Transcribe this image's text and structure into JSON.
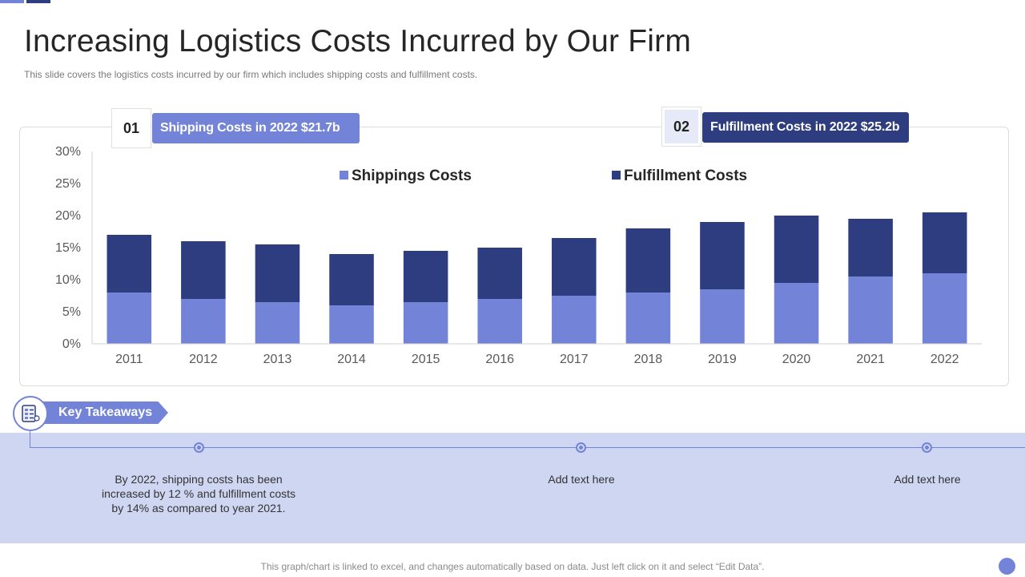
{
  "slide": {
    "title": "Increasing Logistics Costs Incurred by Our Firm",
    "subtitle": "This slide covers the logistics costs incurred by our firm which includes shipping costs and fulfillment costs.",
    "footer": "This graph/chart is linked to excel,  and changes automatically based on data. Just left click on it and select “Edit Data”."
  },
  "badges": [
    {
      "num": "01",
      "label": "Shipping Costs  in 2022 $21.7b",
      "color": "#7384d8"
    },
    {
      "num": "02",
      "label": "Fulfillment Costs  in 2022 $25.2b",
      "color": "#2e3d80"
    }
  ],
  "takeaways": {
    "label": "Key Takeaways",
    "notes": [
      "By 2022, shipping costs has been increased by 12 % and fulfillment costs by 14% as compared to year 2021.",
      "Add text here",
      "Add text here"
    ]
  },
  "colors": {
    "shipping": "#7384d8",
    "fulfillment": "#2e3d80",
    "band": "#cfd6f1"
  },
  "chart_data": {
    "type": "bar",
    "stacked": true,
    "categories": [
      "2011",
      "2012",
      "2013",
      "2014",
      "2015",
      "2016",
      "2017",
      "2018",
      "2019",
      "2020",
      "2021",
      "2022"
    ],
    "series": [
      {
        "name": "Shippings Costs",
        "color": "#7384d8",
        "values": [
          8,
          7,
          6.5,
          6,
          6.5,
          7,
          7.5,
          8,
          8.5,
          9.5,
          10.5,
          11
        ]
      },
      {
        "name": "Fulfillment  Costs",
        "color": "#2e3d80",
        "values": [
          9,
          9,
          9,
          8,
          8,
          8,
          9,
          10,
          10.5,
          10.5,
          9,
          9.5
        ]
      }
    ],
    "y_ticks": [
      "0%",
      "5%",
      "10%",
      "15%",
      "20%",
      "25%",
      "30%"
    ],
    "ylim": [
      0,
      30
    ],
    "legend_position": "top-center",
    "grid": false
  }
}
